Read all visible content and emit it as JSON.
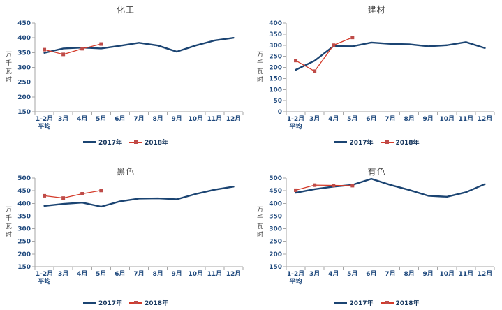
{
  "colors": {
    "line_2017": "#1B4472",
    "line_2018": "#D43B2A",
    "marker_2018": "#BE4B48",
    "axis": "#A6A6A6",
    "tick_text": "#1F497D",
    "legend_text": "#17375E",
    "title_text": "#404040"
  },
  "chart_data": [
    {
      "type": "line",
      "title": "化工",
      "ylabel": "万千瓦时",
      "xlabel": "",
      "categories": [
        "1-2月\n平均",
        "3月",
        "4月",
        "5月",
        "6月",
        "7月",
        "8月",
        "9月",
        "10月",
        "11月",
        "12月"
      ],
      "ylim": [
        150,
        450
      ],
      "ytick": 50,
      "grid": false,
      "legend_position": "bottom",
      "series": [
        {
          "name": "2017年",
          "values": [
            349,
            364,
            367,
            364,
            373,
            383,
            374,
            353,
            374,
            391,
            400
          ]
        },
        {
          "name": "2018年",
          "values": [
            360,
            344,
            363,
            379
          ]
        }
      ]
    },
    {
      "type": "line",
      "title": "建材",
      "ylabel": "万千瓦时",
      "xlabel": "",
      "categories": [
        "1-2月\n平均",
        "3月",
        "4月",
        "5月",
        "6月",
        "7月",
        "8月",
        "9月",
        "10月",
        "11月",
        "12月"
      ],
      "ylim": [
        0,
        400
      ],
      "ytick": 50,
      "grid": false,
      "legend_position": "bottom",
      "series": [
        {
          "name": "2017年",
          "values": [
            189,
            230,
            296,
            295,
            312,
            306,
            304,
            295,
            300,
            314,
            287
          ]
        },
        {
          "name": "2018年",
          "values": [
            231,
            183,
            300,
            335
          ]
        }
      ]
    },
    {
      "type": "line",
      "title": "黑色",
      "ylabel": "万千瓦时",
      "xlabel": "",
      "categories": [
        "1-2月\n平均",
        "3月",
        "4月",
        "5月",
        "6月",
        "7月",
        "8月",
        "9月",
        "10月",
        "11月",
        "12月"
      ],
      "ylim": [
        150,
        500
      ],
      "ytick": 50,
      "grid": false,
      "legend_position": "bottom",
      "series": [
        {
          "name": "2017年",
          "values": [
            390,
            398,
            403,
            387,
            408,
            419,
            420,
            416,
            437,
            454,
            466
          ]
        },
        {
          "name": "2018年",
          "values": [
            430,
            421,
            438,
            451
          ]
        }
      ]
    },
    {
      "type": "line",
      "title": "有色",
      "ylabel": "万千瓦时",
      "xlabel": "",
      "categories": [
        "1-2月\n平均",
        "3月",
        "4月",
        "5月",
        "6月",
        "7月",
        "8月",
        "9月",
        "10月",
        "11月",
        "12月"
      ],
      "ylim": [
        150,
        500
      ],
      "ytick": 50,
      "grid": false,
      "legend_position": "bottom",
      "series": [
        {
          "name": "2017年",
          "values": [
            442,
            456,
            466,
            473,
            497,
            473,
            453,
            430,
            426,
            444,
            476
          ]
        },
        {
          "name": "2018年",
          "values": [
            452,
            472,
            471,
            470
          ]
        }
      ]
    }
  ]
}
